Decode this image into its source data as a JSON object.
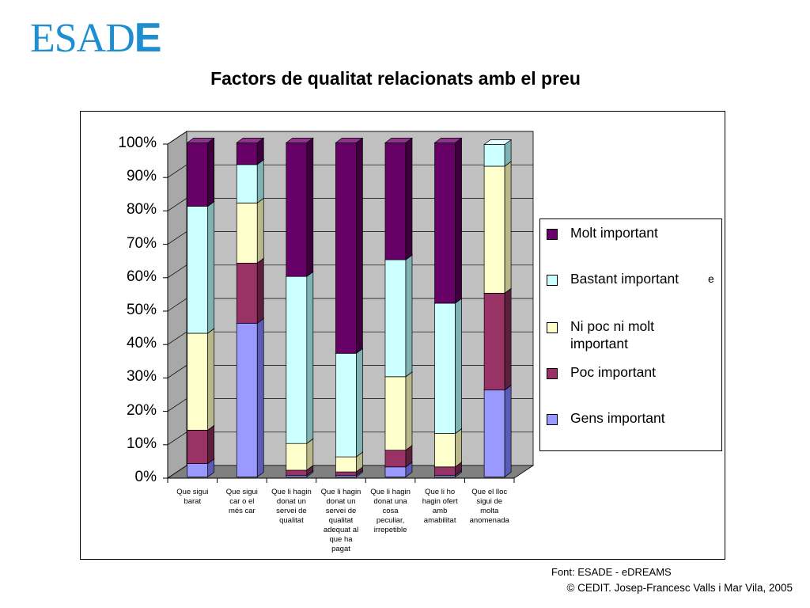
{
  "logo": {
    "main": "ESAD",
    "last": "E"
  },
  "source": "Font: ESADE - eDREAMS",
  "copyright": "© CEDIT. Josep-Francesc Valls i Mar Vila, 2005",
  "stray_glyph": "e",
  "chart_data": {
    "type": "bar",
    "stacked": true,
    "percent": true,
    "style": "3d",
    "title": "Factors de qualitat relacionats amb el preu",
    "ylim": [
      0,
      100
    ],
    "yticks": [
      "0%",
      "10%",
      "20%",
      "30%",
      "40%",
      "50%",
      "60%",
      "70%",
      "80%",
      "90%",
      "100%"
    ],
    "legend_position": "right",
    "grid": true,
    "categories": [
      [
        "Que sigui",
        "barat"
      ],
      [
        "Que sigui",
        "car o el",
        "més car"
      ],
      [
        "Que li hagin",
        "donat un",
        "servei de",
        "qualitat"
      ],
      [
        "Que li hagin",
        "donat un",
        "servei de",
        "qualitat",
        "adequat al",
        "que ha",
        "pagat"
      ],
      [
        "Que li hagin",
        "donat una",
        "cosa",
        "peculiar,",
        "irrepetible"
      ],
      [
        "Que li ho",
        "hagin ofert",
        "amb",
        "amabilitat"
      ],
      [
        "Que el lloc",
        "sigui de",
        "molta",
        "anomenada"
      ]
    ],
    "series": [
      {
        "name": "Gens important",
        "color": "#9999ff",
        "side": "#5c5cb8",
        "top": "#c2c2ff",
        "values": [
          4,
          46,
          0.5,
          0.5,
          3,
          0.5,
          26
        ]
      },
      {
        "name": "Poc important",
        "color": "#993366",
        "side": "#5e1f3e",
        "top": "#c0668f",
        "values": [
          10,
          18,
          1.5,
          1,
          5,
          2.5,
          29
        ]
      },
      {
        "name": "Ni poc ni molt important",
        "color": "#ffffcc",
        "side": "#b8b88a",
        "top": "#ffffe6",
        "values": [
          29,
          18,
          8,
          4.5,
          22,
          10,
          38
        ]
      },
      {
        "name": "Bastant important",
        "color": "#ccffff",
        "side": "#7fb3b3",
        "top": "#e6ffff",
        "values": [
          38,
          11.5,
          50,
          31,
          35,
          39,
          6.5
        ]
      },
      {
        "name": "Molt important",
        "color": "#660066",
        "side": "#3d003d",
        "top": "#8c338c",
        "values": [
          19,
          6.5,
          40,
          63,
          35,
          48,
          0
        ]
      }
    ]
  }
}
